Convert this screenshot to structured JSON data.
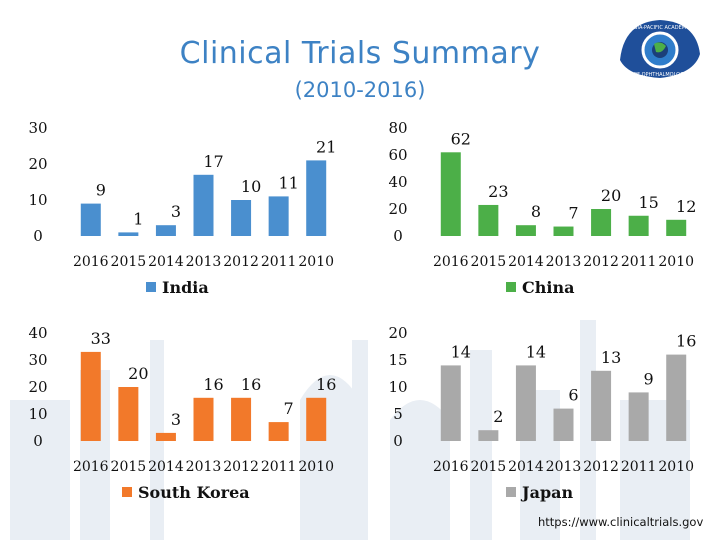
{
  "page": {
    "title": "Clinical Trials Summary",
    "subtitle": "(2010-2016)",
    "source": "https://www.clinicaltrials.gov",
    "logo_text": "ASIA-PACIFIC ACADEMY OF OPHTHALMOLOGY"
  },
  "chart_data": [
    {
      "type": "bar",
      "title": "",
      "categories": [
        "2016",
        "2015",
        "2014",
        "2013",
        "2012",
        "2011",
        "2010"
      ],
      "series": [
        {
          "name": "India",
          "values": [
            9,
            1,
            3,
            17,
            10,
            11,
            21
          ]
        }
      ],
      "ylim": [
        0,
        30
      ],
      "yticks": [
        0,
        10,
        20,
        30
      ],
      "color": "#4a8fcf",
      "legend": "bottom"
    },
    {
      "type": "bar",
      "title": "",
      "categories": [
        "2016",
        "2015",
        "2014",
        "2013",
        "2012",
        "2011",
        "2010"
      ],
      "series": [
        {
          "name": "China",
          "values": [
            62,
            23,
            8,
            7,
            20,
            15,
            12
          ]
        }
      ],
      "ylim": [
        0,
        80
      ],
      "yticks": [
        0,
        20,
        40,
        60,
        80
      ],
      "color": "#4caf48",
      "legend": "bottom"
    },
    {
      "type": "bar",
      "title": "",
      "categories": [
        "2016",
        "2015",
        "2014",
        "2013",
        "2012",
        "2011",
        "2010"
      ],
      "series": [
        {
          "name": "South Korea",
          "values": [
            33,
            20,
            3,
            16,
            16,
            7,
            16
          ]
        }
      ],
      "ylim": [
        0,
        40
      ],
      "yticks": [
        0,
        10,
        20,
        30,
        40
      ],
      "color": "#f2792a",
      "legend": "bottom"
    },
    {
      "type": "bar",
      "title": "",
      "categories": [
        "2016",
        "2015",
        "2014",
        "2013",
        "2012",
        "2011",
        "2010"
      ],
      "series": [
        {
          "name": "Japan",
          "values": [
            14,
            2,
            14,
            6,
            13,
            9,
            16
          ]
        }
      ],
      "ylim": [
        0,
        20
      ],
      "yticks": [
        0,
        5,
        10,
        15,
        20
      ],
      "color": "#a9a9a9",
      "legend": "bottom"
    }
  ]
}
